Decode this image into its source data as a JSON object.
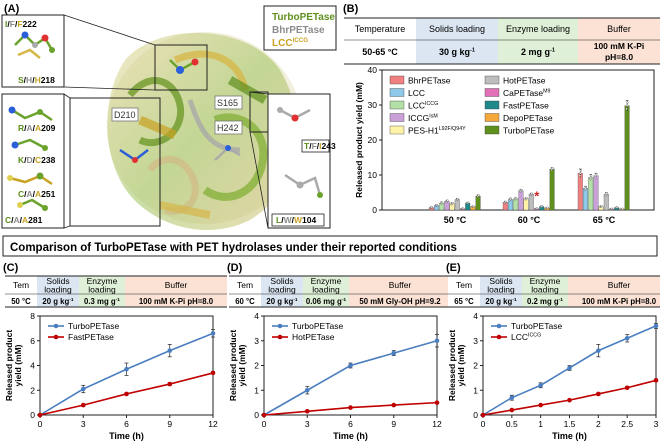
{
  "panel_a": {
    "letter": "(A)",
    "legend": [
      {
        "name": "TurboPETase",
        "sup": "",
        "color": "#5f8f1c"
      },
      {
        "name": "BhrPETase",
        "sup": "",
        "color": "#8c8c8c"
      },
      {
        "name": "LCC",
        "sup": "ICCG",
        "color": "#c9a222"
      }
    ],
    "residues": {
      "r222": {
        "a": "I",
        "b": "F",
        "c": "F",
        "num": "222"
      },
      "r218": {
        "a": "S",
        "b": "H",
        "c": "H",
        "num": "218"
      },
      "r209": {
        "a": "R",
        "b": "A",
        "c": "A",
        "num": "209"
      },
      "r238": {
        "a": "K",
        "b": "D",
        "c": "C",
        "num": "238"
      },
      "r251": {
        "a": "C",
        "b": "A",
        "c": "A",
        "num": "251"
      },
      "r281": {
        "a": "C",
        "b": "A",
        "c": "A",
        "num": "281"
      },
      "r243": {
        "a": "T",
        "b": "F",
        "c": "I",
        "num": "243"
      },
      "r104": {
        "a": "L",
        "b": "W",
        "c": "W",
        "num": "104"
      }
    },
    "center_labels": {
      "d210": "D210",
      "s165": "S165",
      "h242": "H242"
    }
  },
  "panel_b": {
    "letter": "(B)",
    "table": {
      "headers": [
        "Temperature",
        "Solids loading",
        "Enzyme loading",
        "Buffer"
      ],
      "values": [
        "50-65 °C",
        "30 g kg",
        "2 mg g",
        "100 mM K-Pi pH=8.0"
      ],
      "sup_units": [
        "",
        "-1",
        "-1",
        ""
      ]
    }
  },
  "section_title": "Comparison of TurboPETase with PET hydrolases under their reported conditions",
  "panels": {
    "c": {
      "letter": "(C)",
      "cells": [
        "Tem",
        "Solids loading",
        "Enzyme loading",
        "Buffer"
      ],
      "vals": [
        "50 °C",
        "20 g kg",
        "0.3 mg g",
        "100 mM K-Pi pH=8.0"
      ]
    },
    "d": {
      "letter": "(D)",
      "cells": [
        "Tem",
        "Solids loading",
        "Enzyme loading",
        "Buffer"
      ],
      "vals": [
        "60 °C",
        "20 g kg",
        "0.06 mg g",
        "50 mM Gly-OH pH=9.2"
      ]
    },
    "e": {
      "letter": "(E)",
      "cells": [
        "Tem",
        "Solids loading",
        "Enzyme loading",
        "Buffer"
      ],
      "vals": [
        "65 °C",
        "20 g kg",
        "0.2 mg g",
        "100 mM K-Pi pH=8.0"
      ]
    }
  },
  "colors": {
    "temp": "#ffffff",
    "solids": "#dce6f2",
    "enzyme": "#dff0d8",
    "buffer": "#fbe2d5",
    "turbo_line": "#4a7ec0",
    "comp_line": "#c00000",
    "star": "#d62020"
  },
  "chart_data": [
    {
      "type": "bar",
      "panel": "B",
      "title": "",
      "ylabel": "Released product yield (mM)",
      "xlabel": "",
      "ylim": [
        0,
        40
      ],
      "yticks": [
        0,
        10,
        20,
        30,
        40
      ],
      "categories": [
        "50 °C",
        "60 °C",
        "65 °C"
      ],
      "annotation": "*",
      "series": [
        {
          "name": "BhrPETase",
          "sup": "",
          "color": "#f08080",
          "values": [
            0.7,
            2.2,
            10.5
          ],
          "err": [
            0.2,
            0.3,
            1.2
          ]
        },
        {
          "name": "LCC",
          "sup": "",
          "color": "#8ec9ea",
          "values": [
            1.3,
            3.0,
            6.2
          ],
          "err": [
            0.2,
            0.4,
            0.6
          ]
        },
        {
          "name": "LCC",
          "sup": "ICCG",
          "color": "#b3e0a6",
          "values": [
            2.0,
            3.2,
            9.3
          ],
          "err": [
            0.3,
            0.3,
            0.8
          ]
        },
        {
          "name": "ICCG",
          "sup": "IsM",
          "color": "#c9a0d8",
          "values": [
            2.5,
            5.5,
            9.8
          ],
          "err": [
            0.3,
            0.4,
            0.7
          ]
        },
        {
          "name": "PES-H1",
          "sup": "L92F/Q94Y",
          "color": "#fff3a8",
          "values": [
            1.8,
            3.2,
            1.0
          ],
          "err": [
            0.3,
            0.3,
            0.2
          ]
        },
        {
          "name": "HotPETase",
          "sup": "",
          "color": "#bdbdbd",
          "values": [
            3.0,
            4.5,
            4.5
          ],
          "err": [
            0.3,
            0.3,
            0.5
          ]
        },
        {
          "name": "CaPETase",
          "sup": "M9",
          "color": "#e070b8",
          "values": [
            0.4,
            0.4,
            0.3
          ],
          "err": [
            0.1,
            0.1,
            0.1
          ]
        },
        {
          "name": "FastPETase",
          "sup": "",
          "color": "#1f8a8a",
          "values": [
            2.0,
            1.0,
            0.7
          ],
          "err": [
            0.2,
            0.2,
            0.1
          ]
        },
        {
          "name": "DepoPETase",
          "sup": "",
          "color": "#f4a93a",
          "values": [
            1.0,
            0.6,
            0.3
          ],
          "err": [
            0.1,
            0.1,
            0.1
          ]
        },
        {
          "name": "TurboPETase",
          "sup": "",
          "color": "#5f8f1c",
          "values": [
            4.0,
            11.7,
            29.8
          ],
          "err": [
            0.3,
            0.4,
            1.5
          ]
        }
      ]
    },
    {
      "type": "line",
      "panel": "C",
      "xlabel": "Time (h)",
      "ylabel": "Released product yield (mM)",
      "xlim": [
        0,
        12
      ],
      "ylim": [
        0,
        8
      ],
      "xticks": [
        0,
        3,
        6,
        9,
        12
      ],
      "yticks": [
        0,
        2,
        4,
        6,
        8
      ],
      "series": [
        {
          "name": "TurboPETase",
          "color": "#4a7ec0",
          "x": [
            0,
            3,
            6,
            9,
            12
          ],
          "y": [
            0,
            2.1,
            3.7,
            5.2,
            6.6
          ],
          "err": [
            0,
            0.3,
            0.5,
            0.5,
            0.3
          ]
        },
        {
          "name": "FastPETase",
          "color": "#c00000",
          "x": [
            0,
            3,
            6,
            9,
            12
          ],
          "y": [
            0,
            0.8,
            1.7,
            2.5,
            3.4
          ],
          "err": [
            0,
            0.1,
            0.1,
            0.1,
            0.1
          ]
        }
      ]
    },
    {
      "type": "line",
      "panel": "D",
      "xlabel": "Time (h)",
      "ylabel": "Released product yield (mM)",
      "xlim": [
        0,
        12
      ],
      "ylim": [
        0,
        4
      ],
      "xticks": [
        0,
        3,
        6,
        9,
        12
      ],
      "yticks": [
        0,
        1,
        2,
        3,
        4
      ],
      "series": [
        {
          "name": "TurboPETase",
          "color": "#4a7ec0",
          "x": [
            0,
            3,
            6,
            9,
            12
          ],
          "y": [
            0,
            1.0,
            2.0,
            2.5,
            3.0
          ],
          "err": [
            0,
            0.15,
            0.1,
            0.1,
            0.25
          ]
        },
        {
          "name": "HotPETase",
          "color": "#c00000",
          "x": [
            0,
            3,
            6,
            9,
            12
          ],
          "y": [
            0,
            0.15,
            0.3,
            0.4,
            0.5
          ],
          "err": [
            0,
            0.03,
            0.03,
            0.03,
            0.03
          ]
        }
      ]
    },
    {
      "type": "line",
      "panel": "E",
      "xlabel": "Time (h)",
      "ylabel": "Released product yield (mM)",
      "xlim": [
        0,
        3
      ],
      "ylim": [
        0,
        4
      ],
      "xticks": [
        0,
        0.5,
        1,
        1.5,
        2,
        2.5,
        3
      ],
      "yticks": [
        0,
        1,
        2,
        3,
        4
      ],
      "series": [
        {
          "name": "TurboPETase",
          "color": "#4a7ec0",
          "x": [
            0,
            0.5,
            1,
            1.5,
            2,
            2.5,
            3
          ],
          "y": [
            0,
            0.7,
            1.2,
            1.9,
            2.6,
            3.1,
            3.6
          ],
          "err": [
            0,
            0.1,
            0.1,
            0.1,
            0.25,
            0.15,
            0.1
          ]
        },
        {
          "name": "LCC",
          "sup": "ICCG",
          "color": "#c00000",
          "x": [
            0,
            0.5,
            1,
            1.5,
            2,
            2.5,
            3
          ],
          "y": [
            0,
            0.2,
            0.4,
            0.6,
            0.85,
            1.1,
            1.4
          ],
          "err": [
            0,
            0.03,
            0.03,
            0.03,
            0.05,
            0.05,
            0.05
          ]
        }
      ]
    }
  ]
}
